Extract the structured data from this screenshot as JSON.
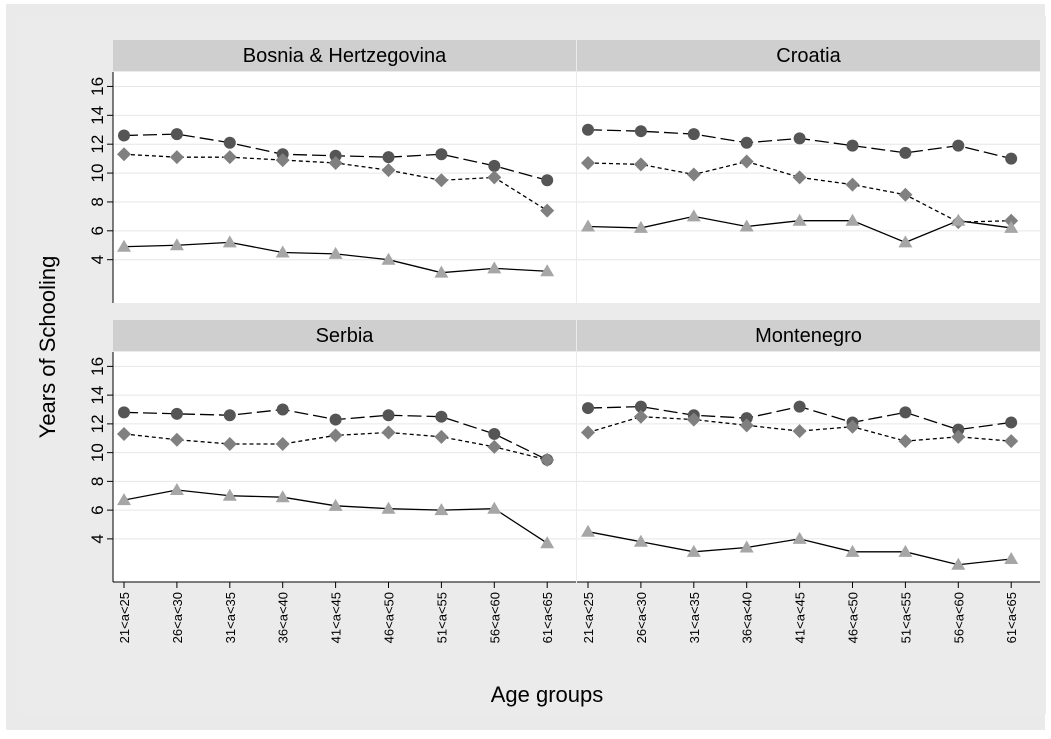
{
  "chart_data": {
    "type": "line",
    "layout": "2x2 facet grid",
    "ylabel": "Years of Schooling",
    "xlabel": "Age groups",
    "categories": [
      "21<a<25",
      "26<a<30",
      "31<a<35",
      "36<a<40",
      "41<a<45",
      "46<a<50",
      "51<a<55",
      "56<a<60",
      "61<a<65"
    ],
    "yticks": [
      "4",
      "6",
      "8",
      "10",
      "12",
      "14",
      "16"
    ],
    "ylim": [
      1,
      17
    ],
    "grid": true,
    "legend": "none",
    "series_styles": [
      {
        "marker": "circle",
        "line": "long-dash",
        "color": "#555555"
      },
      {
        "marker": "diamond",
        "line": "dotted",
        "color": "#808080"
      },
      {
        "marker": "triangle",
        "line": "solid",
        "color": "#a6a6a6"
      }
    ],
    "panels": [
      {
        "title": "Bosnia & Hertzegovina",
        "series": [
          {
            "values": [
              12.6,
              12.7,
              12.1,
              11.3,
              11.2,
              11.1,
              11.3,
              10.5,
              9.5
            ]
          },
          {
            "values": [
              11.3,
              11.1,
              11.1,
              10.9,
              10.7,
              10.2,
              9.5,
              9.7,
              7.4
            ]
          },
          {
            "values": [
              4.9,
              5.0,
              5.2,
              4.5,
              4.4,
              4.0,
              3.1,
              3.4,
              3.2
            ]
          }
        ]
      },
      {
        "title": "Croatia",
        "series": [
          {
            "values": [
              13.0,
              12.9,
              12.7,
              12.1,
              12.4,
              11.9,
              11.4,
              11.9,
              11.0
            ]
          },
          {
            "values": [
              10.7,
              10.6,
              9.9,
              10.8,
              9.7,
              9.2,
              8.5,
              6.6,
              6.7
            ]
          },
          {
            "values": [
              6.3,
              6.2,
              7.0,
              6.3,
              6.7,
              6.7,
              5.2,
              6.7,
              6.2
            ]
          }
        ]
      },
      {
        "title": "Serbia",
        "series": [
          {
            "values": [
              12.8,
              12.7,
              12.6,
              13.0,
              12.3,
              12.6,
              12.5,
              11.3,
              9.5
            ]
          },
          {
            "values": [
              11.3,
              10.9,
              10.6,
              10.6,
              11.2,
              11.4,
              11.1,
              10.4,
              9.5
            ]
          },
          {
            "values": [
              6.7,
              7.4,
              7.0,
              6.9,
              6.3,
              6.1,
              6.0,
              6.1,
              3.7
            ]
          }
        ]
      },
      {
        "title": "Montenegro",
        "series": [
          {
            "values": [
              13.1,
              13.2,
              12.6,
              12.4,
              13.2,
              12.1,
              12.8,
              11.6,
              12.1
            ]
          },
          {
            "values": [
              11.4,
              12.5,
              12.3,
              11.9,
              11.5,
              11.8,
              10.8,
              11.1,
              10.8
            ]
          },
          {
            "values": [
              4.5,
              3.8,
              3.1,
              3.4,
              4.0,
              3.1,
              3.1,
              2.2,
              2.6
            ]
          }
        ]
      }
    ]
  }
}
